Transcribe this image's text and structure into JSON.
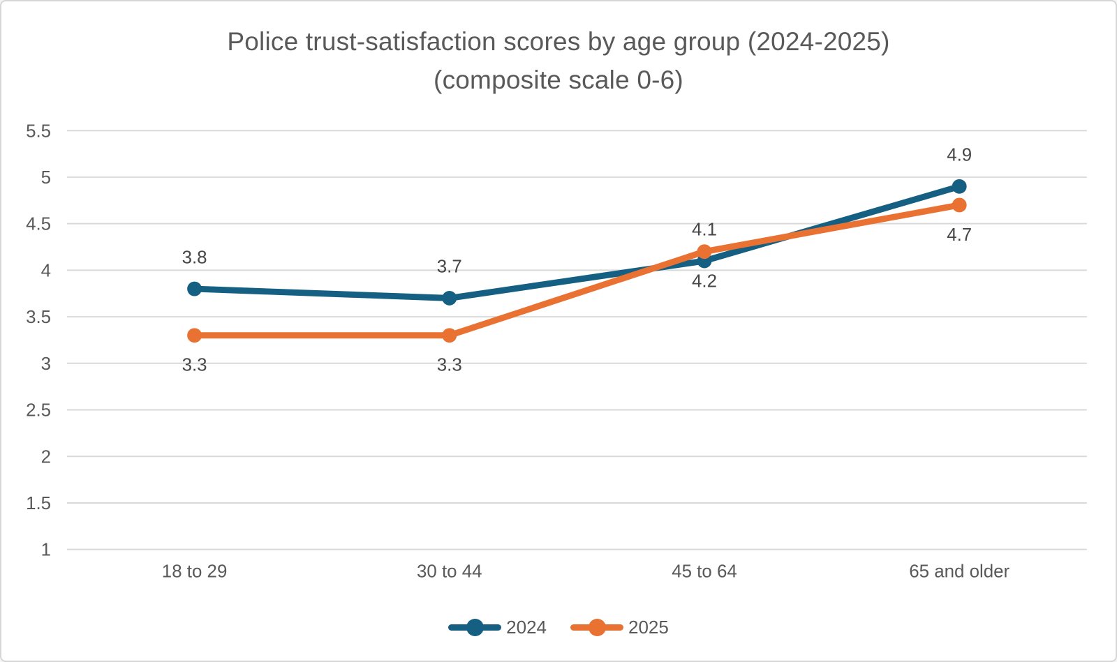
{
  "chart_data": {
    "type": "line",
    "title": "Police trust-satisfaction scores by age group (2024-2025)",
    "subtitle": "(composite scale 0-6)",
    "categories": [
      "18 to 29",
      "30 to 44",
      "45 to 64",
      "65 and older"
    ],
    "series": [
      {
        "name": "2024",
        "color": "#156082",
        "values": [
          3.8,
          3.7,
          4.1,
          4.9
        ],
        "labels": [
          "3.8",
          "3.7",
          "4.1",
          "4.9"
        ],
        "label_position": "above"
      },
      {
        "name": "2025",
        "color": "#E97132",
        "values": [
          3.3,
          3.3,
          4.2,
          4.7
        ],
        "labels": [
          "3.3",
          "3.3",
          "4.2",
          "4.7"
        ],
        "label_position": "below"
      }
    ],
    "y_axis": {
      "min": 1,
      "max": 5.5,
      "step": 0.5,
      "tick_labels": [
        "5.5",
        "5",
        "4.5",
        "4",
        "3.5",
        "3",
        "2.5",
        "2",
        "1.5",
        "1"
      ]
    },
    "grid": true,
    "legend_position": "bottom",
    "colors": {
      "gridline": "#D9D9D9",
      "tick_text": "#595959",
      "category_text": "#595959",
      "data_label_text": "#464646",
      "title_text": "#595959",
      "background": "#FFFFFF",
      "frame_border": "#D6D6D6"
    }
  }
}
